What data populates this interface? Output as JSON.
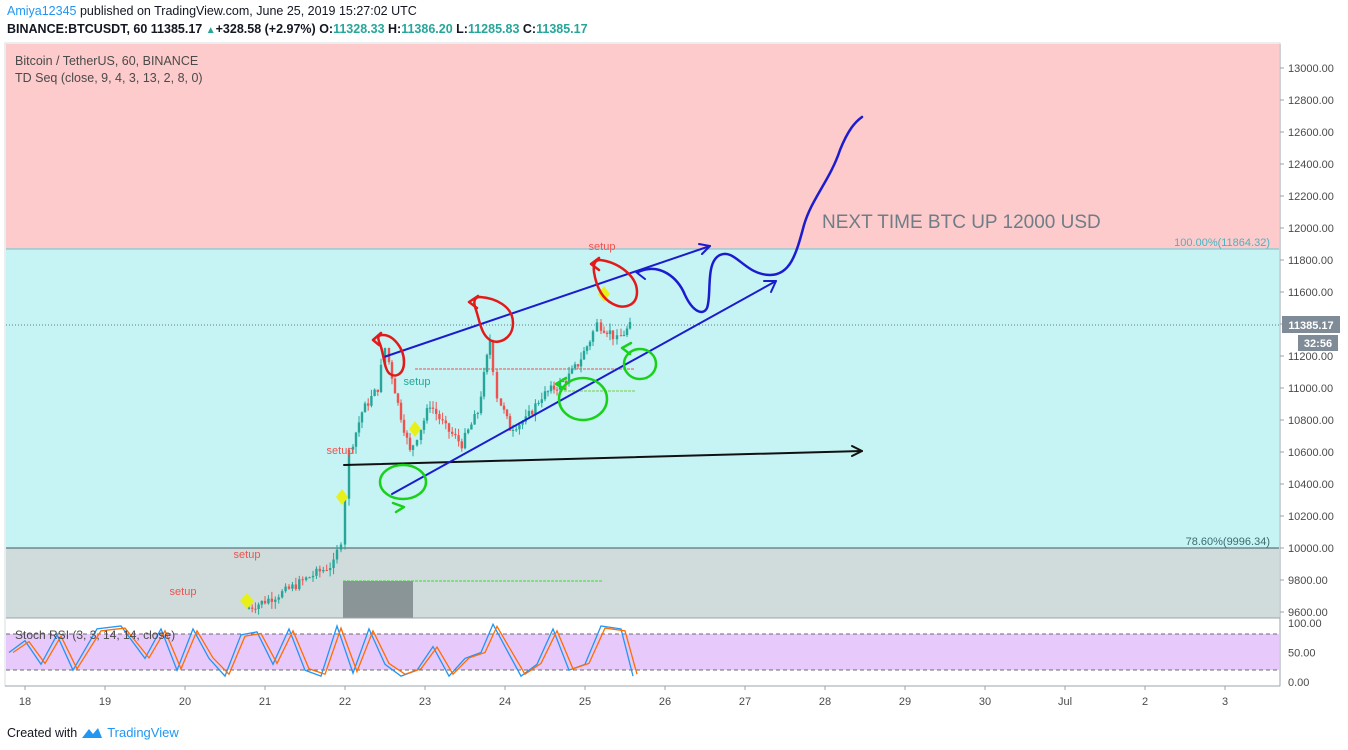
{
  "header": {
    "user": "Amiya12345",
    "published": " published on TradingView.com, June 25, 2019 15:27:02 UTC",
    "symbol": "BINANCE:BTCUSDT, 60",
    "last": "11385.17",
    "change": "+328.58 (+2.97%)",
    "o_label": "O:",
    "o": "11328.33",
    "h_label": "H:",
    "h": "11386.20",
    "l_label": "L:",
    "l": "11285.83",
    "c_label": "C:",
    "c": "11385.17"
  },
  "legend": {
    "title": "Bitcoin / TetherUS, 60, BINANCE",
    "indicator": "TD Seq (close, 9, 4, 3, 13, 2, 8, 0)",
    "rsi": "Stoch RSI (3, 3, 14, 14, close)"
  },
  "annotation": "NEXT TIME BTC UP 12000 USD",
  "footer": {
    "created": "Created with",
    "brand": "TradingView"
  },
  "colors": {
    "zone_top": "#fdcbcb",
    "zone_mid": "#c6f4f4",
    "zone_low": "#cfdcdb",
    "rsi_band": "#e8c9fb",
    "up": "#26a69a",
    "down": "#ef5350",
    "blue_draw": "#1c1ccf",
    "red_draw": "#e41919",
    "green_draw": "#19d119"
  },
  "chart_data": {
    "type": "candlestick",
    "price_axis": {
      "ticks": [
        "13000.00",
        "12800.00",
        "12600.00",
        "12400.00",
        "12200.00",
        "12000.00",
        "11800.00",
        "11600.00",
        "11400.00",
        "11200.00",
        "11000.00",
        "10800.00",
        "10600.00",
        "10400.00",
        "10200.00",
        "10000.00",
        "9800.00",
        "9600.00"
      ],
      "current_price": "11385.17",
      "countdown": "32:56"
    },
    "time_axis": {
      "ticks": [
        "18",
        "19",
        "20",
        "21",
        "22",
        "23",
        "24",
        "25",
        "26",
        "27",
        "28",
        "29",
        "30",
        "Jul",
        "2",
        "3"
      ]
    },
    "fib_levels": [
      {
        "label": "100.00%(11864.32)",
        "price": 11864.32
      },
      {
        "label": "78.60%(9996.34)",
        "price": 9996.34
      }
    ],
    "td_labels": [
      {
        "text": "setup",
        "color": "#ef5350",
        "x": "19.9",
        "price": 9600
      },
      {
        "text": "setup",
        "color": "#ef5350",
        "x": "20.8",
        "price": 9835
      },
      {
        "text": "setup",
        "color": "#ef5350",
        "x": "22.0",
        "price": 10585
      },
      {
        "text": "setup",
        "color": "#26a69a",
        "x": "22.9",
        "price": 11130
      },
      {
        "text": "setup",
        "color": "#ef5350",
        "x": "25.2",
        "price": 11880
      }
    ],
    "rsi_axis": {
      "ticks": [
        "100.00",
        "50.00",
        "0.00"
      ]
    },
    "price_path": [
      [
        20.8,
        9620
      ],
      [
        21.0,
        9660
      ],
      [
        21.3,
        9730
      ],
      [
        21.6,
        9820
      ],
      [
        21.9,
        9900
      ],
      [
        22.0,
        10050
      ],
      [
        22.1,
        10600
      ],
      [
        22.25,
        10850
      ],
      [
        22.45,
        11000
      ],
      [
        22.55,
        11250
      ],
      [
        22.7,
        10900
      ],
      [
        22.85,
        10600
      ],
      [
        22.95,
        10700
      ],
      [
        23.1,
        10900
      ],
      [
        23.3,
        10750
      ],
      [
        23.5,
        10650
      ],
      [
        23.7,
        10850
      ],
      [
        23.85,
        11300
      ],
      [
        23.95,
        10950
      ],
      [
        24.1,
        10750
      ],
      [
        24.3,
        10800
      ],
      [
        24.5,
        10950
      ],
      [
        24.65,
        11000
      ],
      [
        24.8,
        11050
      ],
      [
        24.95,
        11150
      ],
      [
        25.1,
        11300
      ],
      [
        25.2,
        11400
      ],
      [
        25.35,
        11350
      ],
      [
        25.45,
        11300
      ],
      [
        25.6,
        11385
      ]
    ],
    "stoch_k": [
      [
        17.8,
        50
      ],
      [
        18.0,
        70
      ],
      [
        18.2,
        30
      ],
      [
        18.4,
        80
      ],
      [
        18.6,
        20
      ],
      [
        18.9,
        90
      ],
      [
        19.2,
        95
      ],
      [
        19.5,
        40
      ],
      [
        19.7,
        90
      ],
      [
        19.9,
        20
      ],
      [
        20.1,
        90
      ],
      [
        20.3,
        40
      ],
      [
        20.5,
        10
      ],
      [
        20.7,
        80
      ],
      [
        20.9,
        85
      ],
      [
        21.1,
        30
      ],
      [
        21.3,
        90
      ],
      [
        21.5,
        20
      ],
      [
        21.7,
        10
      ],
      [
        21.9,
        95
      ],
      [
        22.1,
        15
      ],
      [
        22.3,
        90
      ],
      [
        22.5,
        30
      ],
      [
        22.7,
        10
      ],
      [
        22.9,
        20
      ],
      [
        23.1,
        60
      ],
      [
        23.3,
        10
      ],
      [
        23.5,
        40
      ],
      [
        23.7,
        50
      ],
      [
        23.85,
        98
      ],
      [
        24.0,
        60
      ],
      [
        24.2,
        10
      ],
      [
        24.4,
        30
      ],
      [
        24.6,
        90
      ],
      [
        24.8,
        20
      ],
      [
        25.0,
        30
      ],
      [
        25.2,
        95
      ],
      [
        25.45,
        90
      ],
      [
        25.6,
        10
      ]
    ]
  }
}
